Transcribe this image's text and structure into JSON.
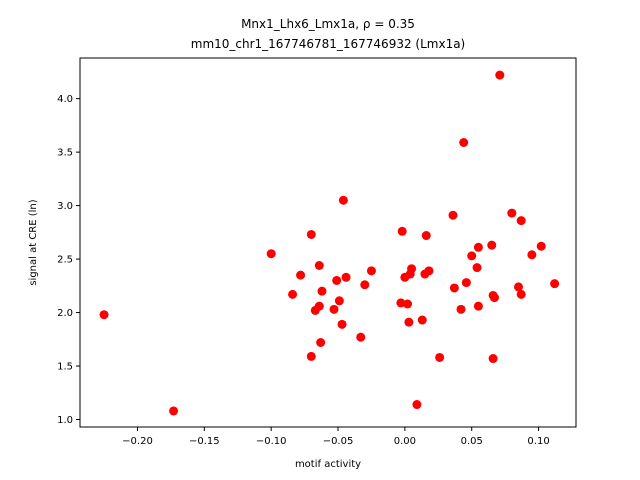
{
  "chart_data": {
    "type": "scatter",
    "title_line1": "Mnx1_Lhx6_Lmx1a, ρ = 0.35",
    "title_line2": "mm10_chr1_167746781_167746932 (Lmx1a)",
    "xlabel": "motif activity",
    "ylabel": "signal at CRE (ln)",
    "xlim": [
      -0.243,
      0.128
    ],
    "ylim": [
      0.93,
      4.38
    ],
    "x_ticks": [
      -0.2,
      -0.15,
      -0.1,
      -0.05,
      0.0,
      0.05,
      0.1
    ],
    "x_tick_labels": [
      "−0.20",
      "−0.15",
      "−0.10",
      "−0.05",
      "0.00",
      "0.05",
      "0.10"
    ],
    "y_ticks": [
      1.0,
      1.5,
      2.0,
      2.5,
      3.0,
      3.5,
      4.0
    ],
    "y_tick_labels": [
      "1.0",
      "1.5",
      "2.0",
      "2.5",
      "3.0",
      "3.5",
      "4.0"
    ],
    "grid": false,
    "marker_color": "#ff0000",
    "points": [
      {
        "x": -0.225,
        "y": 1.98
      },
      {
        "x": -0.173,
        "y": 1.08
      },
      {
        "x": -0.1,
        "y": 2.55
      },
      {
        "x": -0.084,
        "y": 2.17
      },
      {
        "x": -0.078,
        "y": 2.35
      },
      {
        "x": -0.07,
        "y": 2.73
      },
      {
        "x": -0.07,
        "y": 1.59
      },
      {
        "x": -0.067,
        "y": 2.02
      },
      {
        "x": -0.064,
        "y": 2.44
      },
      {
        "x": -0.064,
        "y": 2.06
      },
      {
        "x": -0.063,
        "y": 1.72
      },
      {
        "x": -0.062,
        "y": 2.2
      },
      {
        "x": -0.053,
        "y": 2.03
      },
      {
        "x": -0.051,
        "y": 2.3
      },
      {
        "x": -0.049,
        "y": 2.11
      },
      {
        "x": -0.047,
        "y": 1.89
      },
      {
        "x": -0.046,
        "y": 3.05
      },
      {
        "x": -0.044,
        "y": 2.33
      },
      {
        "x": -0.033,
        "y": 1.77
      },
      {
        "x": -0.03,
        "y": 2.26
      },
      {
        "x": -0.025,
        "y": 2.39
      },
      {
        "x": -0.003,
        "y": 2.09
      },
      {
        "x": -0.002,
        "y": 2.76
      },
      {
        "x": 0.0,
        "y": 2.33
      },
      {
        "x": 0.002,
        "y": 2.08
      },
      {
        "x": 0.003,
        "y": 1.91
      },
      {
        "x": 0.004,
        "y": 2.36
      },
      {
        "x": 0.005,
        "y": 2.41
      },
      {
        "x": 0.009,
        "y": 1.14
      },
      {
        "x": 0.013,
        "y": 1.93
      },
      {
        "x": 0.015,
        "y": 2.36
      },
      {
        "x": 0.016,
        "y": 2.72
      },
      {
        "x": 0.018,
        "y": 2.39
      },
      {
        "x": 0.026,
        "y": 1.58
      },
      {
        "x": 0.036,
        "y": 2.91
      },
      {
        "x": 0.037,
        "y": 2.23
      },
      {
        "x": 0.042,
        "y": 2.03
      },
      {
        "x": 0.044,
        "y": 3.59
      },
      {
        "x": 0.046,
        "y": 2.28
      },
      {
        "x": 0.05,
        "y": 2.53
      },
      {
        "x": 0.054,
        "y": 2.42
      },
      {
        "x": 0.055,
        "y": 2.61
      },
      {
        "x": 0.055,
        "y": 2.06
      },
      {
        "x": 0.065,
        "y": 2.63
      },
      {
        "x": 0.066,
        "y": 2.16
      },
      {
        "x": 0.066,
        "y": 1.57
      },
      {
        "x": 0.067,
        "y": 2.14
      },
      {
        "x": 0.071,
        "y": 4.22
      },
      {
        "x": 0.08,
        "y": 2.93
      },
      {
        "x": 0.085,
        "y": 2.24
      },
      {
        "x": 0.087,
        "y": 2.86
      },
      {
        "x": 0.087,
        "y": 2.17
      },
      {
        "x": 0.095,
        "y": 2.54
      },
      {
        "x": 0.102,
        "y": 2.62
      },
      {
        "x": 0.112,
        "y": 2.27
      }
    ]
  }
}
